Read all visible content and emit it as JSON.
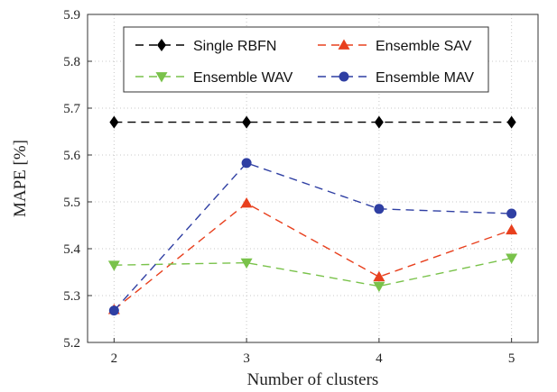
{
  "chart_data": {
    "type": "line",
    "xlabel": "Number of clusters",
    "ylabel": "MAPE [%]",
    "x": [
      2,
      3,
      4,
      5
    ],
    "xlim": [
      1.8,
      5.2
    ],
    "ylim": [
      5.2,
      5.9
    ],
    "xticks": [
      "2",
      "3",
      "4",
      "5"
    ],
    "yticks": [
      "5.2",
      "5.3",
      "5.4",
      "5.5",
      "5.6",
      "5.7",
      "5.8",
      "5.9"
    ],
    "grid": true,
    "legend_position": "top",
    "series": [
      {
        "name": "Single RBFN",
        "values": [
          5.67,
          5.67,
          5.67,
          5.67
        ],
        "color": "#000000",
        "marker": "diamond"
      },
      {
        "name": "Ensemble SAV",
        "values": [
          5.27,
          5.497,
          5.34,
          5.44
        ],
        "color": "#e8401e",
        "marker": "triangle-up"
      },
      {
        "name": "Ensemble WAV",
        "values": [
          5.365,
          5.37,
          5.32,
          5.38
        ],
        "color": "#79c24a",
        "marker": "triangle-down"
      },
      {
        "name": "Ensemble MAV",
        "values": [
          5.268,
          5.583,
          5.485,
          5.475
        ],
        "color": "#2f3fa3",
        "marker": "circle"
      }
    ]
  }
}
